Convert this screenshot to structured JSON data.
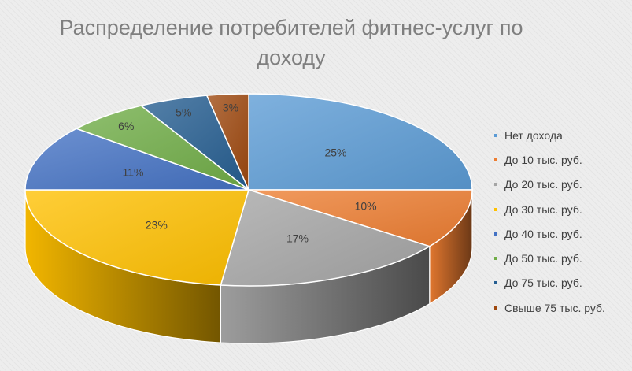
{
  "chart_data": {
    "type": "pie",
    "title": "Распределение потребителей фитнес-услуг по доходу",
    "categories": [
      "Нет дохода",
      "До 10 тыс. руб.",
      "До 20 тыс. руб.",
      "До 30 тыс. руб.",
      "До 40 тыс. руб.",
      "До 50 тыс. руб.",
      "До 75 тыс. руб.",
      "Свыше 75 тыс. руб."
    ],
    "values": [
      25,
      10,
      17,
      23,
      11,
      6,
      5,
      3
    ],
    "labels": [
      "25%",
      "10%",
      "17%",
      "23%",
      "11%",
      "6%",
      "5%",
      "3%"
    ],
    "colors": [
      "#5b9bd5",
      "#ed7d31",
      "#a5a5a5",
      "#ffc000",
      "#4472c4",
      "#70ad47",
      "#255e91",
      "#9e480e"
    ],
    "legend_position": "right",
    "style": "3d-pie"
  }
}
